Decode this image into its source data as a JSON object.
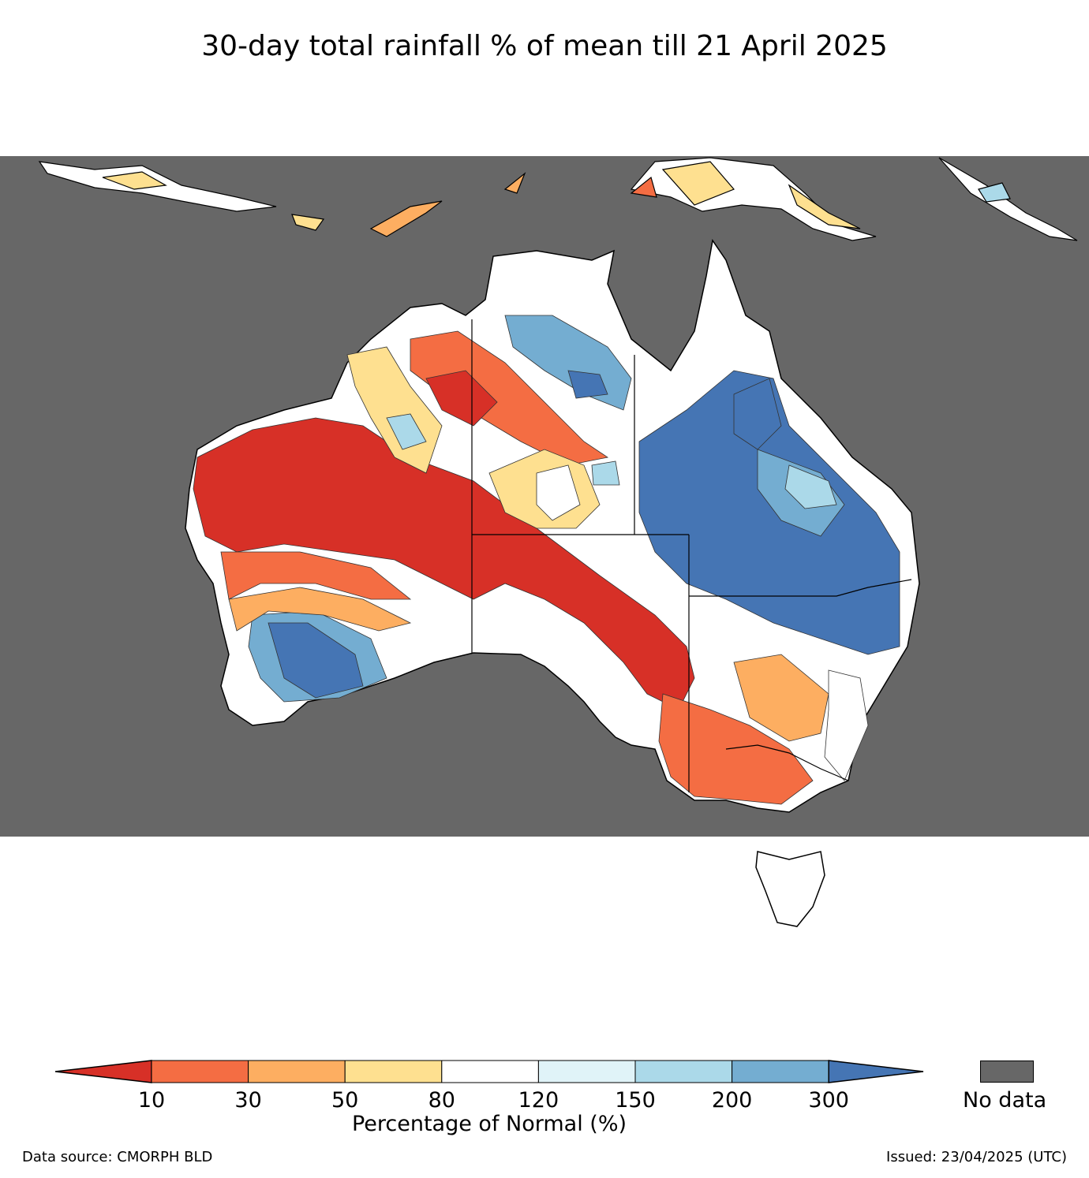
{
  "title": "30-day total rainfall % of mean till 21 April 2025",
  "colorbar": {
    "ticks": [
      "10",
      "30",
      "50",
      "80",
      "120",
      "150",
      "200",
      "300"
    ],
    "label": "Percentage of Normal (%)",
    "colors": [
      "#d73027",
      "#f46d43",
      "#fdae61",
      "#fee090",
      "#ffffff",
      "#e0f3f8",
      "#abd9e9",
      "#74add1",
      "#4575b4"
    ]
  },
  "nodata": {
    "label": "No data",
    "color": "#676767"
  },
  "footer": {
    "source": "Data source: CMORPH BLD",
    "issued": "Issued: 23/04/2025 (UTC)"
  }
}
